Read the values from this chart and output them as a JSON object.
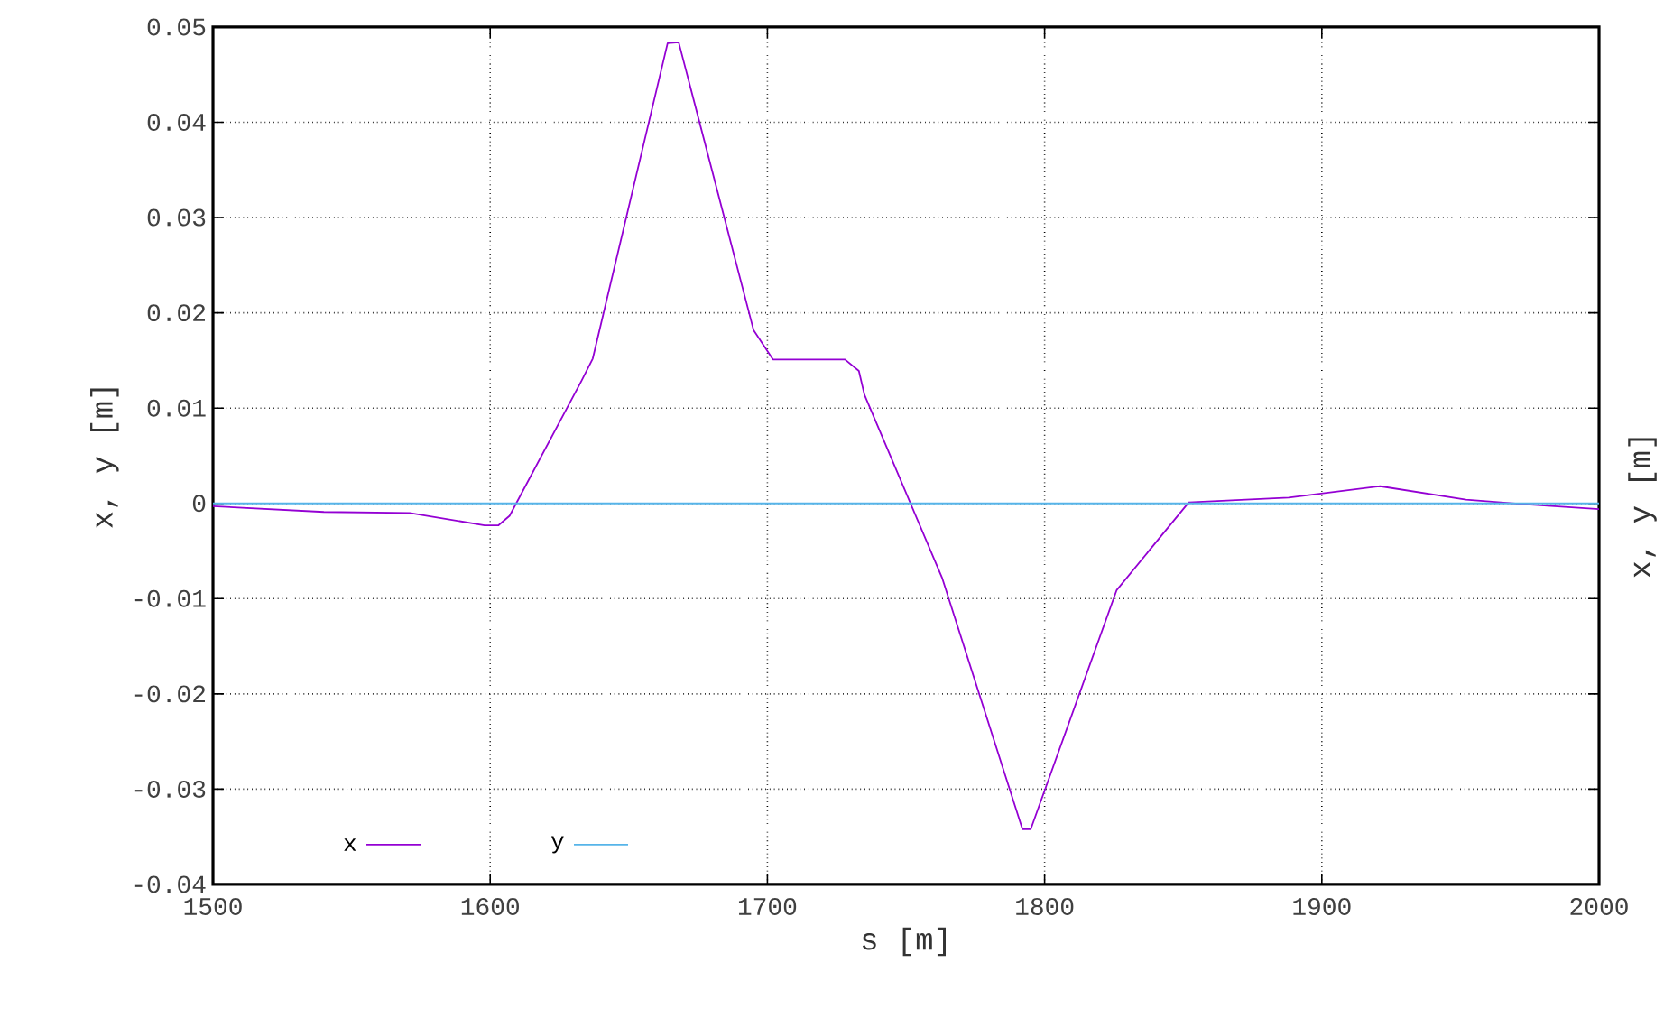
{
  "chart_data": {
    "type": "line",
    "xlabel": "s [m]",
    "ylabel": "x, y [m]",
    "y2label": "x, y [m]",
    "xlim": [
      1500,
      2000
    ],
    "xticks": [
      1500,
      1600,
      1700,
      1800,
      1900,
      2000
    ],
    "ylim": [
      -0.04,
      0.05
    ],
    "yticks": [
      -0.04,
      -0.03,
      -0.02,
      -0.01,
      0,
      0.01,
      0.02,
      0.03,
      0.04,
      0.05
    ],
    "grid": true,
    "legend": "bottom left",
    "line_style": "solid",
    "series": [
      {
        "name": "x",
        "color": "#9400d3",
        "x": [
          1500,
          1540,
          1571,
          1598,
          1603,
          1607,
          1633,
          1637,
          1664,
          1668,
          1695,
          1702,
          1728,
          1733,
          1735,
          1763,
          1792,
          1795,
          1826,
          1852,
          1888,
          1921,
          1952,
          1974,
          2000
        ],
        "values": [
          -0.0003,
          -0.0009,
          -0.001,
          -0.0023,
          -0.0023,
          -0.0013,
          0.0129,
          0.0152,
          0.0483,
          0.0484,
          0.0182,
          0.0151,
          0.0151,
          0.0139,
          0.0114,
          -0.0078,
          -0.0342,
          -0.0342,
          -0.0091,
          0.0001,
          0.0006,
          0.0018,
          0.0004,
          -0.0001,
          -0.0006
        ]
      },
      {
        "name": "y",
        "color": "#56b4e9",
        "x": [
          1500,
          2000
        ],
        "values": [
          0,
          0
        ]
      }
    ]
  }
}
